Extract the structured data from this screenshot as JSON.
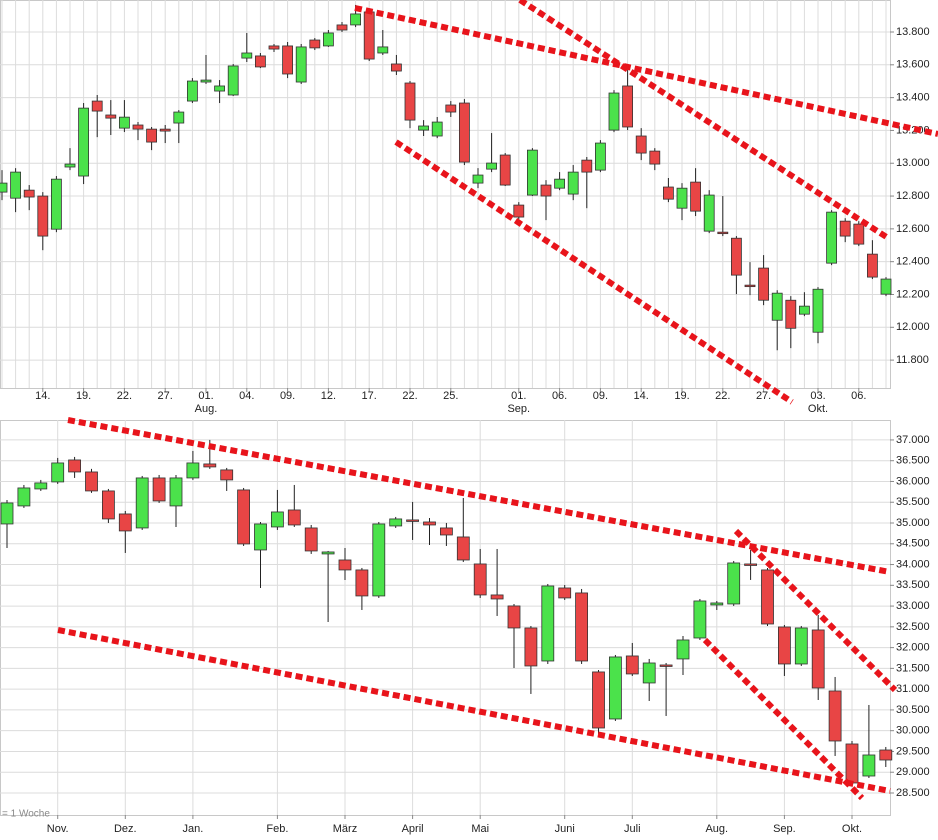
{
  "chart_data": [
    {
      "type": "candlestick",
      "categories": [
        null,
        null,
        null,
        "14.",
        null,
        null,
        "19.",
        null,
        null,
        "22.",
        null,
        null,
        "27.",
        null,
        null,
        "01.",
        null,
        null,
        "04.",
        null,
        null,
        "09.",
        null,
        null,
        "12.",
        null,
        null,
        "17.",
        null,
        null,
        "22.",
        null,
        null,
        "25.",
        null,
        null,
        null,
        null,
        "01.",
        null,
        null,
        "06.",
        null,
        null,
        "09.",
        null,
        null,
        "14.",
        null,
        null,
        "19.",
        null,
        null,
        "22.",
        null,
        null,
        "27.",
        null,
        null,
        null,
        "03.",
        null,
        null,
        "06.",
        null,
        null
      ],
      "months": [
        null,
        null,
        null,
        null,
        null,
        null,
        null,
        null,
        null,
        null,
        null,
        null,
        null,
        null,
        null,
        "Aug.",
        null,
        null,
        null,
        null,
        null,
        null,
        null,
        null,
        null,
        null,
        null,
        null,
        null,
        null,
        null,
        null,
        null,
        null,
        null,
        null,
        null,
        null,
        "Sep.",
        null,
        null,
        null,
        null,
        null,
        null,
        null,
        null,
        null,
        null,
        null,
        null,
        null,
        null,
        null,
        null,
        null,
        null,
        null,
        null,
        null,
        "Okt.",
        null,
        null,
        null,
        null,
        null
      ],
      "open": [
        12824,
        12787,
        12836,
        12800,
        12598,
        12977,
        12922,
        13379,
        13294,
        13214,
        13233,
        13208,
        13208,
        13245,
        13379,
        13495,
        13440,
        13416,
        13641,
        13654,
        13715,
        13715,
        13495,
        13751,
        13715,
        13843,
        13843,
        13922,
        13672,
        13605,
        13489,
        13202,
        13166,
        13355,
        13367,
        12879,
        12964,
        13050,
        12745,
        12806,
        12867,
        12848,
        12812,
        13019,
        12958,
        13202,
        13471,
        13166,
        13074,
        12855,
        12726,
        12885,
        12586,
        12580,
        12543,
        12257,
        12361,
        12043,
        12165,
        12080,
        11970,
        12391,
        12647,
        12629,
        12446,
        12202
      ],
      "high": [
        12958,
        12970,
        12867,
        12824,
        12922,
        13092,
        13367,
        13416,
        13385,
        13385,
        13251,
        13221,
        13233,
        13324,
        13519,
        13660,
        13507,
        13605,
        13794,
        13672,
        13727,
        13739,
        13727,
        13763,
        13812,
        13861,
        13965,
        13934,
        13812,
        13660,
        13501,
        13263,
        13282,
        13379,
        13391,
        12970,
        13184,
        13062,
        12763,
        13092,
        12897,
        12946,
        12989,
        13038,
        13141,
        13446,
        13568,
        13214,
        13092,
        12910,
        12879,
        12970,
        12836,
        12800,
        12556,
        12397,
        12440,
        12226,
        12190,
        12214,
        12245,
        12714,
        12665,
        12647,
        12531,
        12306
      ],
      "low": [
        12775,
        12702,
        12714,
        12470,
        12580,
        12958,
        12873,
        13159,
        13172,
        13190,
        13141,
        13080,
        13123,
        13123,
        13367,
        13483,
        13367,
        13410,
        13617,
        13580,
        13678,
        13519,
        13483,
        13690,
        13709,
        13800,
        13830,
        13623,
        13660,
        13538,
        13214,
        13166,
        13153,
        13282,
        12989,
        12848,
        12946,
        12861,
        12659,
        12800,
        12653,
        12836,
        12775,
        12726,
        12946,
        13190,
        13202,
        13019,
        12958,
        12763,
        12653,
        12678,
        12574,
        12556,
        12202,
        12196,
        12135,
        11860,
        11873,
        12068,
        11903,
        12379,
        12519,
        12495,
        12294,
        12190
      ],
      "close": [
        12879,
        12946,
        12794,
        12556,
        12903,
        12995,
        13336,
        13318,
        13275,
        13281,
        13208,
        13129,
        13196,
        13312,
        13501,
        13507,
        13471,
        13593,
        13672,
        13587,
        13696,
        13544,
        13709,
        13703,
        13794,
        13812,
        13910,
        13635,
        13709,
        13562,
        13263,
        13227,
        13251,
        13312,
        13007,
        12928,
        13001,
        12867,
        12672,
        13080,
        12800,
        12903,
        12946,
        12946,
        13123,
        13428,
        13221,
        13062,
        12995,
        12781,
        12848,
        12708,
        12806,
        12574,
        12318,
        12251,
        12165,
        12208,
        11994,
        12129,
        12232,
        12702,
        12556,
        12507,
        12306,
        12294
      ],
      "up_color": "#4be24b",
      "down_color": "#e84545",
      "ylim": [
        11630,
        13995
      ],
      "yticks": [
        {
          "value": 11800,
          "label": "11.800"
        },
        {
          "value": 12000,
          "label": "12.000"
        },
        {
          "value": 12200,
          "label": "12.200"
        },
        {
          "value": 12400,
          "label": "12.400"
        },
        {
          "value": 12600,
          "label": "12.600"
        },
        {
          "value": 12800,
          "label": "12.800"
        },
        {
          "value": 13000,
          "label": "13.000"
        },
        {
          "value": 13200,
          "label": "13.200"
        },
        {
          "value": 13400,
          "label": "13.400"
        },
        {
          "value": 13600,
          "label": "13.600"
        },
        {
          "value": 13800,
          "label": "13.800"
        }
      ],
      "grid": true
    },
    {
      "type": "candlestick",
      "annotation": "= 1 Woche",
      "categories": [
        null,
        null,
        null,
        "Nov.",
        null,
        null,
        null,
        "Dez.",
        null,
        null,
        null,
        "Jan.",
        null,
        null,
        null,
        null,
        "Feb.",
        null,
        null,
        null,
        "März",
        null,
        null,
        null,
        "April",
        null,
        null,
        null,
        "Mai",
        null,
        null,
        null,
        null,
        "Juni",
        null,
        null,
        null,
        "Juli",
        null,
        null,
        null,
        null,
        "Aug.",
        null,
        null,
        null,
        "Sep.",
        null,
        null,
        null,
        "Okt.",
        null,
        null
      ],
      "open": [
        34977,
        35411,
        35820,
        35989,
        36518,
        36229,
        35772,
        35218,
        34881,
        36085,
        35411,
        36085,
        36422,
        36278,
        35796,
        34351,
        34905,
        35314,
        34881,
        34255,
        34110,
        33870,
        33244,
        34929,
        35074,
        35025,
        34881,
        34664,
        34014,
        33268,
        33003,
        32473,
        31678,
        33436,
        33316,
        31414,
        30282,
        31799,
        31149,
        31582,
        31727,
        32232,
        33027,
        33051,
        34014,
        33870,
        32497,
        31606,
        32425,
        30956,
        29680,
        28909,
        29535
      ],
      "high": [
        35555,
        35916,
        36037,
        36567,
        36591,
        36302,
        35820,
        35290,
        36133,
        36157,
        36157,
        36735,
        37000,
        36326,
        35844,
        35025,
        35796,
        35916,
        34953,
        34327,
        34399,
        33918,
        35025,
        35146,
        35507,
        35122,
        35001,
        35603,
        34375,
        34375,
        33051,
        32521,
        33532,
        33508,
        33412,
        31462,
        31823,
        32112,
        31727,
        31630,
        32280,
        33171,
        33123,
        34086,
        34351,
        33918,
        32545,
        32521,
        32786,
        31293,
        29752,
        30619,
        29608
      ],
      "low": [
        34399,
        35363,
        35772,
        35941,
        36085,
        35724,
        35001,
        34279,
        34833,
        35483,
        34905,
        36037,
        36302,
        35772,
        34447,
        33436,
        34833,
        34905,
        34255,
        32617,
        33629,
        32906,
        33196,
        34881,
        34592,
        34471,
        34447,
        34062,
        33196,
        32762,
        31510,
        30884,
        31606,
        33147,
        31606,
        29872,
        30234,
        31317,
        30715,
        30354,
        31341,
        32184,
        32906,
        33003,
        33629,
        32521,
        31317,
        31558,
        30739,
        29391,
        28668,
        28861,
        29126
      ],
      "close": [
        35483,
        35844,
        35965,
        36446,
        36229,
        35772,
        35098,
        34809,
        36085,
        35531,
        36085,
        36446,
        36350,
        36037,
        34496,
        34977,
        35266,
        34953,
        34327,
        34303,
        33870,
        33244,
        34977,
        35098,
        35050,
        34953,
        34712,
        34110,
        33268,
        33171,
        32473,
        31558,
        33484,
        33196,
        31678,
        30065,
        31775,
        31366,
        31630,
        31558,
        32184,
        33123,
        33075,
        34038,
        33990,
        32569,
        31606,
        32473,
        31028,
        29752,
        28741,
        29415,
        29294
      ],
      "up_color": "#4be24b",
      "down_color": "#e84545",
      "ylim": [
        27970,
        37480
      ],
      "yticks": [
        {
          "value": 28500,
          "label": "28.500"
        },
        {
          "value": 29000,
          "label": "29.000"
        },
        {
          "value": 29500,
          "label": "29.500"
        },
        {
          "value": 30000,
          "label": "30.000"
        },
        {
          "value": 30500,
          "label": "30.500"
        },
        {
          "value": 31000,
          "label": "31.000"
        },
        {
          "value": 31500,
          "label": "31.500"
        },
        {
          "value": 32000,
          "label": "32.000"
        },
        {
          "value": 32500,
          "label": "32.500"
        },
        {
          "value": 33000,
          "label": "33.000"
        },
        {
          "value": 33500,
          "label": "33.500"
        },
        {
          "value": 34000,
          "label": "34.000"
        },
        {
          "value": 34500,
          "label": "34.500"
        },
        {
          "value": 35000,
          "label": "35.000"
        },
        {
          "value": 35500,
          "label": "35.500"
        },
        {
          "value": 36000,
          "label": "36.000"
        },
        {
          "value": 36500,
          "label": "36.500"
        },
        {
          "value": 37000,
          "label": "37.000"
        }
      ],
      "grid": true
    }
  ]
}
